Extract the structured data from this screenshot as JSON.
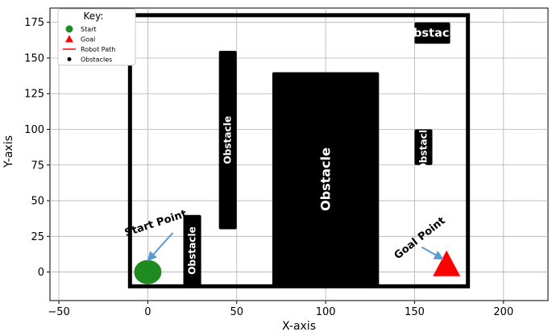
{
  "chart_data": {
    "type": "scatter",
    "xlabel": "X-axis",
    "ylabel": "Y-axis",
    "xlim": [
      -55,
      225
    ],
    "ylim": [
      -20,
      185
    ],
    "xticks": [
      -50,
      0,
      50,
      100,
      150,
      200
    ],
    "yticks": [
      0,
      25,
      50,
      75,
      100,
      125,
      150,
      175
    ],
    "grid": true,
    "legend": {
      "placement": "top-left",
      "title": "Key:",
      "entries": [
        {
          "label": "Start",
          "marker": "circle",
          "color": "#1f8a1f"
        },
        {
          "label": "Goal",
          "marker": "triangle",
          "color": "#ff0000"
        },
        {
          "label": "Robot Path",
          "marker": "line",
          "color": "#ff0000"
        },
        {
          "label": "Obstacles",
          "marker": "dot",
          "color": "#000000"
        }
      ]
    },
    "start": {
      "x": 0,
      "y": 0,
      "color": "#1f8a1f"
    },
    "goal": {
      "x": 168,
      "y": 5,
      "color": "#ff0000"
    },
    "boundary": {
      "x0": -10,
      "y0": -10,
      "x1": 180,
      "y1": 180
    },
    "obstacles": [
      {
        "x0": 20,
        "y0": -10,
        "x1": 30,
        "y1": 40,
        "label": "Obstacle",
        "rotated": true
      },
      {
        "x0": 40,
        "y0": 30,
        "x1": 50,
        "y1": 155,
        "label": "Obstacle",
        "rotated": true
      },
      {
        "x0": 70,
        "y0": -10,
        "x1": 130,
        "y1": 140,
        "label": "Obstacle",
        "rotated": true
      },
      {
        "x0": 150,
        "y0": 75,
        "x1": 160,
        "y1": 100,
        "label": "Obstacle",
        "rotated": true
      },
      {
        "x0": 150,
        "y0": 160,
        "x1": 170,
        "y1": 175,
        "label": "Obstacle",
        "rotated": false
      }
    ],
    "annotations": [
      {
        "text": "Start Point",
        "x": 5,
        "y": 32,
        "arrow_to": [
          0,
          8
        ],
        "arrow_color": "#5b9bd5"
      },
      {
        "text": "Goal Point",
        "x": 154,
        "y": 22,
        "arrow_to": [
          166,
          9
        ],
        "arrow_color": "#5b9bd5"
      }
    ]
  }
}
